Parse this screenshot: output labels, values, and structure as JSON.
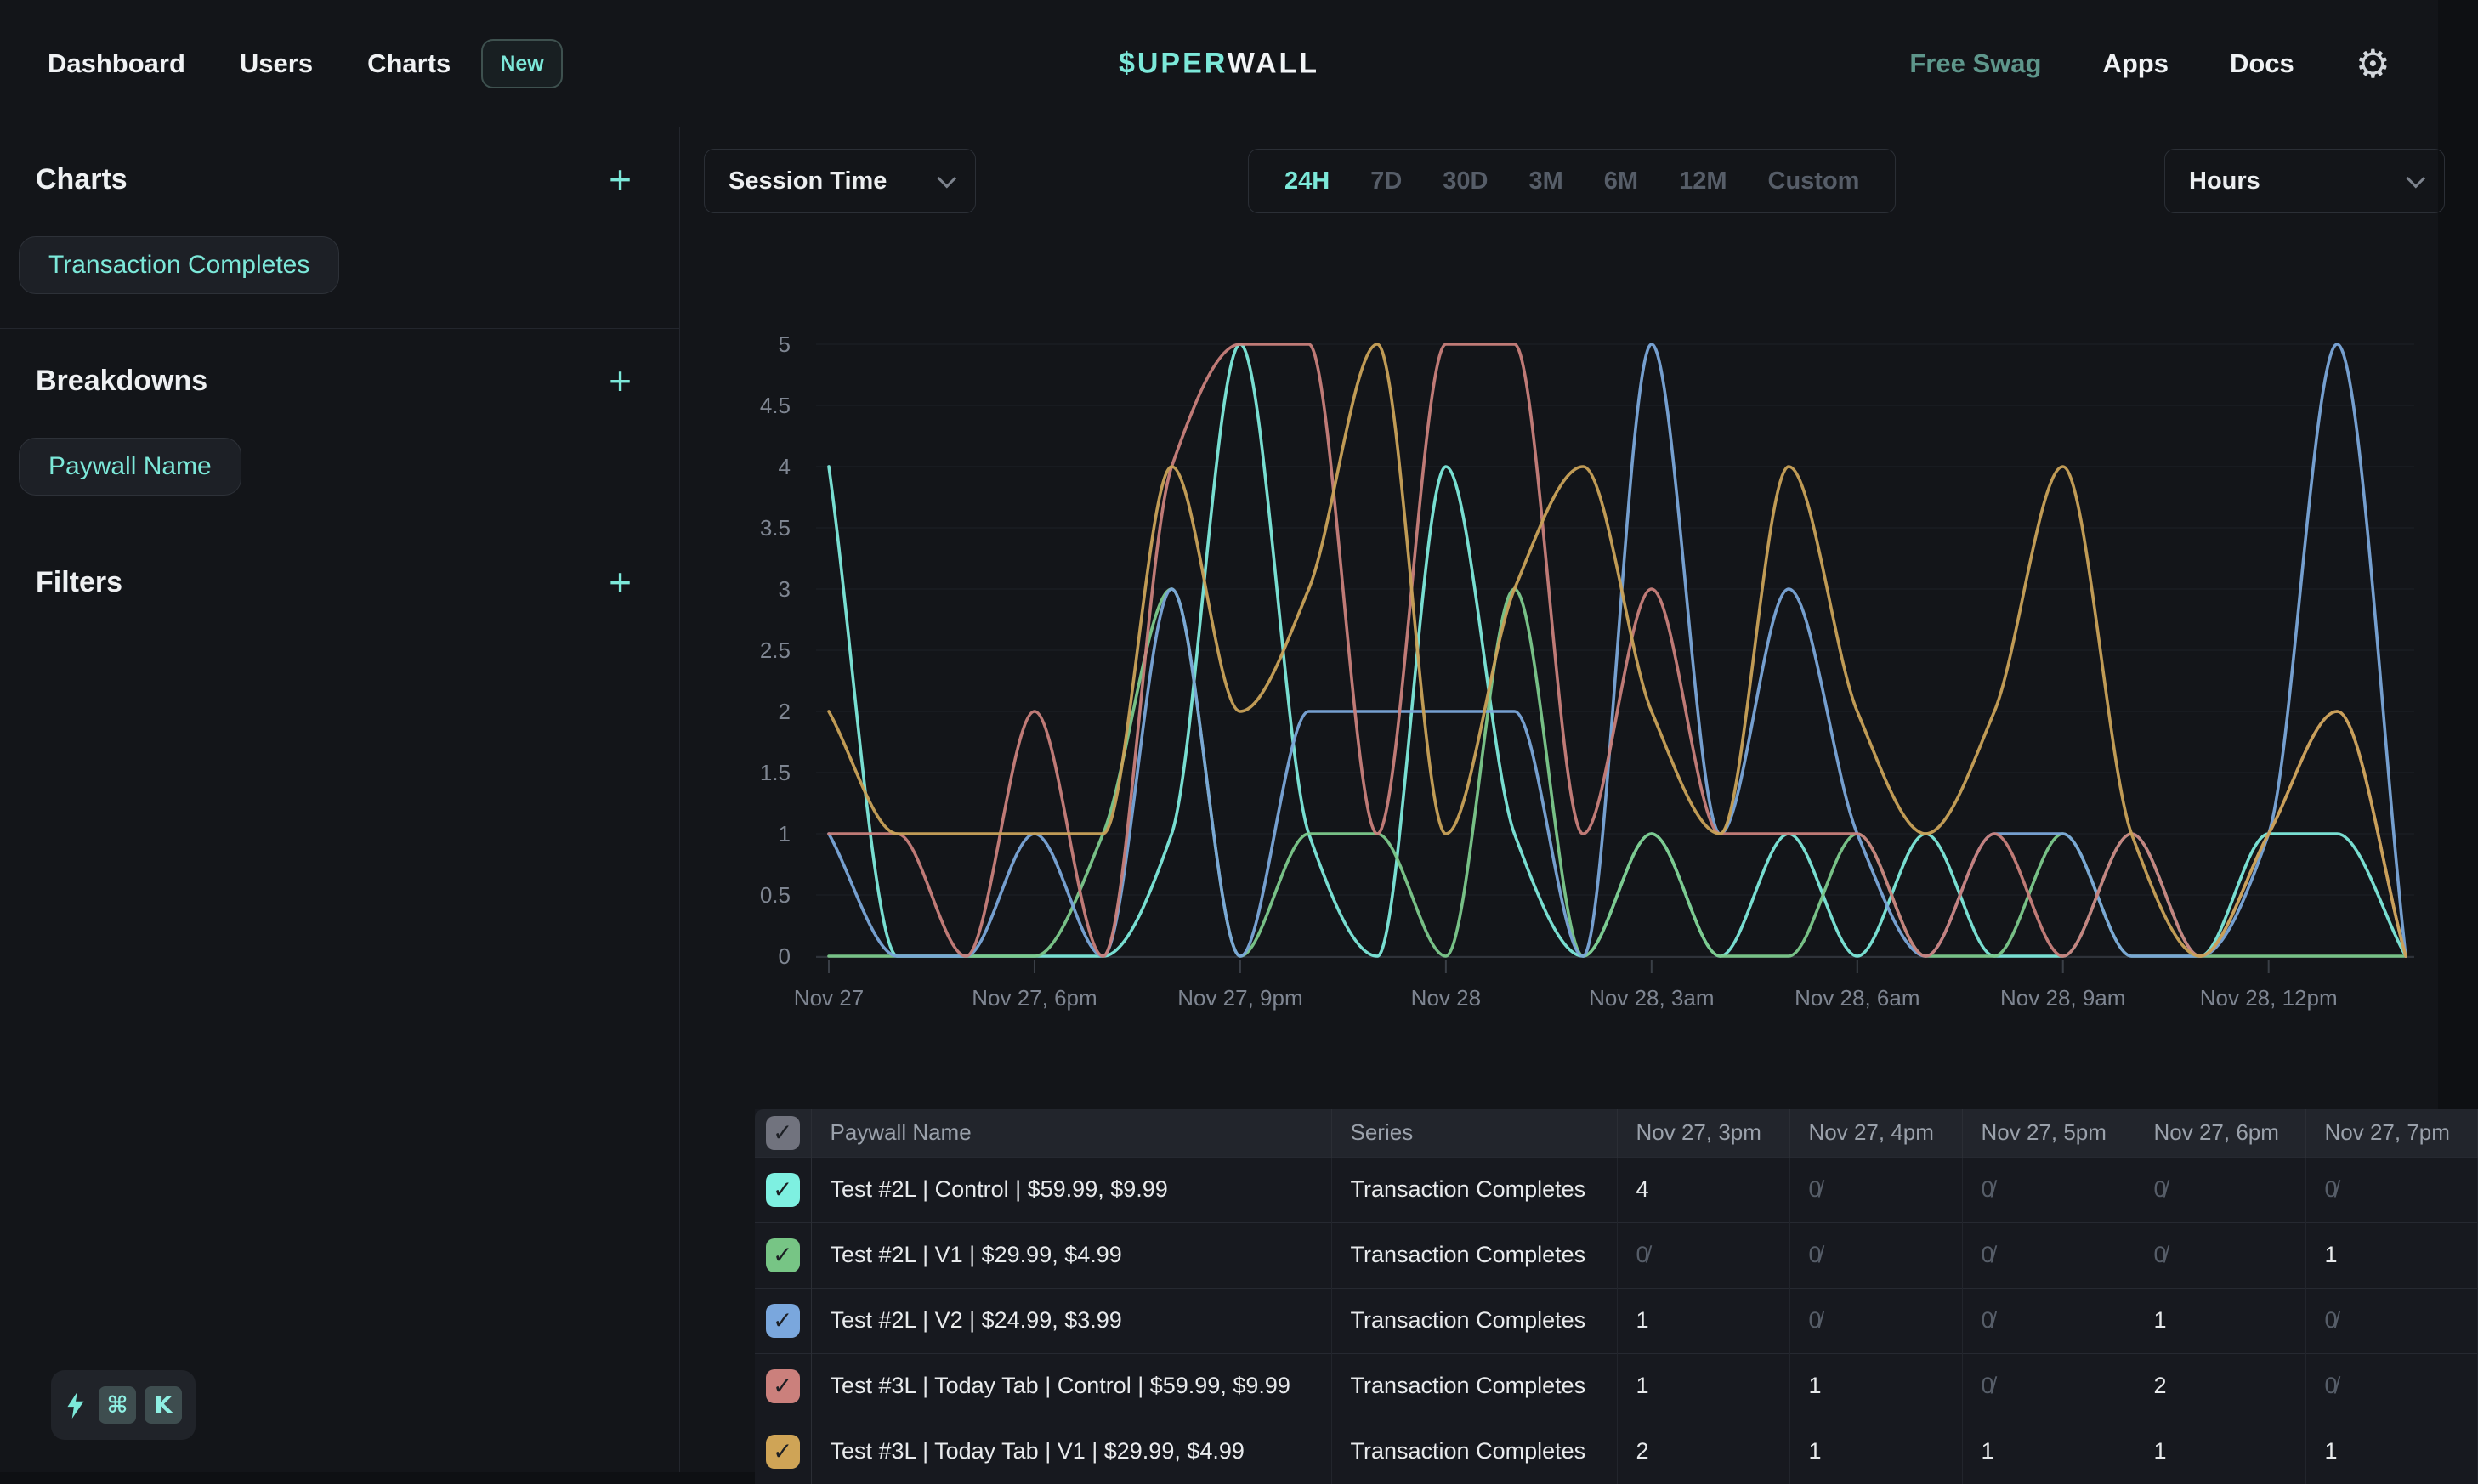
{
  "nav": {
    "items": [
      {
        "label": "Dashboard"
      },
      {
        "label": "Users"
      },
      {
        "label": "Charts"
      }
    ],
    "charts_badge": "New",
    "logo": {
      "accent": "$UPER",
      "rest": "WALL"
    },
    "right_items": [
      {
        "label": "Free Swag"
      },
      {
        "label": "Apps"
      },
      {
        "label": "Docs"
      }
    ],
    "gear_icon": "⚙"
  },
  "sidebar": {
    "sections": [
      {
        "title": "Charts",
        "add_label": "+",
        "chips": [
          "Transaction Completes"
        ]
      },
      {
        "title": "Breakdowns",
        "add_label": "+",
        "chips": [
          "Paywall Name"
        ]
      },
      {
        "title": "Filters",
        "add_label": "+",
        "chips": []
      }
    ]
  },
  "controls": {
    "metric_select": {
      "value": "Session Time"
    },
    "ranges": [
      "24H",
      "7D",
      "30D",
      "3M",
      "6M",
      "12M",
      "Custom"
    ],
    "active_range": "24H",
    "granularity_select": {
      "value": "Hours"
    }
  },
  "chart_data": {
    "type": "line",
    "title": "",
    "xlabel": "",
    "ylabel": "",
    "ylim": [
      0,
      5
    ],
    "y_ticks": [
      0,
      0.5,
      1,
      1.5,
      2,
      2.5,
      3,
      3.5,
      4,
      4.5,
      5
    ],
    "x_tick_labels": [
      "Nov 27",
      "Nov 27, 6pm",
      "Nov 27, 9pm",
      "Nov 28",
      "Nov 28, 3am",
      "Nov 28, 6am",
      "Nov 28, 9am",
      "Nov 28, 12pm"
    ],
    "x_tick_indices": [
      0,
      3,
      6,
      9,
      12,
      15,
      18,
      21
    ],
    "points_per_series": 24,
    "grid": true,
    "legend": "none",
    "series": [
      {
        "name": "Test #2L | Control | $59.99, $9.99",
        "color": "#7de9db",
        "values": [
          4,
          0,
          0,
          0,
          0,
          1,
          5,
          1,
          0,
          4,
          1,
          0,
          1,
          0,
          1,
          0,
          1,
          0,
          0,
          1,
          0,
          1,
          1,
          0
        ]
      },
      {
        "name": "Test #2L | V1 | $29.99, $4.99",
        "color": "#7cc98c",
        "values": [
          0,
          0,
          0,
          0,
          1,
          3,
          0,
          1,
          1,
          0,
          3,
          0,
          1,
          0,
          0,
          1,
          0,
          0,
          1,
          0,
          0,
          0,
          0,
          0
        ]
      },
      {
        "name": "Test #2L | V2 | $24.99, $3.99",
        "color": "#7aa6d9",
        "values": [
          1,
          0,
          0,
          1,
          0,
          3,
          0,
          2,
          2,
          2,
          2,
          0,
          5,
          1,
          3,
          1,
          0,
          1,
          1,
          0,
          0,
          1,
          5,
          0
        ]
      },
      {
        "name": "Test #3L | Today Tab | Control | $59.99, $9.99",
        "color": "#c8807b",
        "values": [
          1,
          1,
          0,
          2,
          0,
          4,
          5,
          5,
          1,
          5,
          5,
          1,
          3,
          1,
          1,
          1,
          0,
          1,
          0,
          1,
          0,
          1,
          2,
          0
        ]
      },
      {
        "name": "Test #3L | Today Tab | V1 | $29.99, $4.99",
        "color": "#c9a258",
        "values": [
          2,
          1,
          1,
          1,
          1,
          4,
          2,
          3,
          5,
          1,
          3,
          4,
          2,
          1,
          4,
          2,
          1,
          2,
          4,
          1,
          0,
          1,
          2,
          0
        ]
      }
    ]
  },
  "table": {
    "columns": [
      "Paywall Name",
      "Series",
      "Nov 27, 3pm",
      "Nov 27, 4pm",
      "Nov 27, 5pm",
      "Nov 27, 6pm",
      "Nov 27, 7pm"
    ],
    "rows": [
      {
        "checkbox_color": "#7ef0e1",
        "checked": true,
        "name": "Test #2L | Control | $59.99, $9.99",
        "series": "Transaction Completes",
        "values": [
          "4",
          "0",
          "0",
          "0",
          "0"
        ]
      },
      {
        "checkbox_color": "#77c585",
        "checked": true,
        "name": "Test #2L | V1 | $29.99, $4.99",
        "series": "Transaction Completes",
        "values": [
          "0",
          "0",
          "0",
          "0",
          "1"
        ]
      },
      {
        "checkbox_color": "#7aa7dd",
        "checked": true,
        "name": "Test #2L | V2 | $24.99, $3.99",
        "series": "Transaction Completes",
        "values": [
          "1",
          "0",
          "0",
          "1",
          "0"
        ]
      },
      {
        "checkbox_color": "#cb807c",
        "checked": true,
        "name": "Test #3L | Today Tab | Control | $59.99, $9.99",
        "series": "Transaction Completes",
        "values": [
          "1",
          "1",
          "0",
          "2",
          "0"
        ]
      },
      {
        "checkbox_color": "#cfa456",
        "checked": true,
        "name": "Test #3L | Today Tab | V1 | $29.99, $4.99",
        "series": "Transaction Completes",
        "values": [
          "2",
          "1",
          "1",
          "1",
          "1"
        ]
      }
    ]
  },
  "shortcut": {
    "keys": [
      "⌘",
      "K"
    ]
  },
  "colors": {
    "accent_teal": "#7ce8d9",
    "background": "#131519",
    "panel_border": "#23262d",
    "axis_label": "#7e8591",
    "inactive_tab": "#565d68",
    "zero_value": "#565d68"
  }
}
